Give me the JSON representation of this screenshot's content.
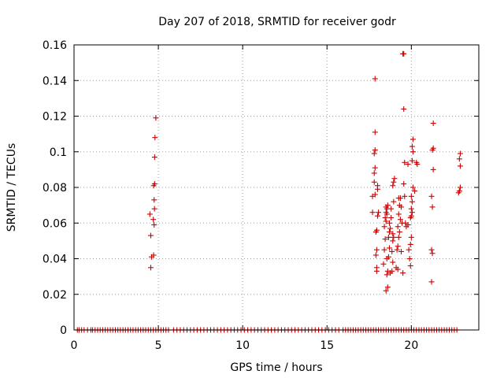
{
  "chart_data": {
    "type": "scatter",
    "title": "Day 207 of 2018, SRMTID for receiver godr",
    "xlabel": "GPS time / hours",
    "ylabel": "SRMTID / TECUs",
    "xlim": [
      0,
      24
    ],
    "ylim": [
      0,
      0.16
    ],
    "xticks": [
      0,
      5,
      10,
      15,
      20
    ],
    "xtick_labels": [
      "0",
      "5",
      "10",
      "15",
      "20"
    ],
    "yticks": [
      0,
      0.02,
      0.04,
      0.06,
      0.08,
      0.1,
      0.12,
      0.14,
      0.16
    ],
    "ytick_labels": [
      "0",
      "0.02",
      "0.04",
      "0.06",
      "0.08",
      "0.1",
      "0.12",
      "0.14",
      "0.16"
    ],
    "grid": true,
    "marker": "plus",
    "marker_color": "#cc0000",
    "series": [
      {
        "name": "SRMTID",
        "points": [
          [
            4.55,
            0.035
          ],
          [
            4.6,
            0.041
          ],
          [
            4.72,
            0.042
          ],
          [
            4.55,
            0.053
          ],
          [
            4.75,
            0.059
          ],
          [
            4.7,
            0.062
          ],
          [
            4.5,
            0.065
          ],
          [
            4.77,
            0.068
          ],
          [
            4.75,
            0.073
          ],
          [
            4.72,
            0.081
          ],
          [
            4.78,
            0.082
          ],
          [
            4.78,
            0.097
          ],
          [
            4.8,
            0.108
          ],
          [
            4.85,
            0.119
          ],
          [
            17.7,
            0.066
          ],
          [
            17.7,
            0.075
          ],
          [
            17.85,
            0.076
          ],
          [
            17.8,
            0.083
          ],
          [
            17.8,
            0.088
          ],
          [
            17.85,
            0.091
          ],
          [
            17.8,
            0.099
          ],
          [
            17.85,
            0.101
          ],
          [
            17.85,
            0.111
          ],
          [
            17.85,
            0.141
          ],
          [
            17.95,
            0.033
          ],
          [
            17.95,
            0.035
          ],
          [
            17.9,
            0.042
          ],
          [
            17.95,
            0.045
          ],
          [
            17.9,
            0.055
          ],
          [
            17.95,
            0.056
          ],
          [
            18.0,
            0.064
          ],
          [
            18.05,
            0.066
          ],
          [
            18.0,
            0.079
          ],
          [
            18.0,
            0.081
          ],
          [
            18.35,
            0.037
          ],
          [
            18.4,
            0.045
          ],
          [
            18.45,
            0.051
          ],
          [
            18.4,
            0.058
          ],
          [
            18.5,
            0.061
          ],
          [
            18.45,
            0.063
          ],
          [
            18.55,
            0.065
          ],
          [
            18.5,
            0.066
          ],
          [
            18.55,
            0.068
          ],
          [
            18.5,
            0.069
          ],
          [
            18.6,
            0.07
          ],
          [
            18.5,
            0.022
          ],
          [
            18.6,
            0.024
          ],
          [
            18.55,
            0.031
          ],
          [
            18.6,
            0.033
          ],
          [
            18.55,
            0.04
          ],
          [
            18.65,
            0.041
          ],
          [
            18.7,
            0.046
          ],
          [
            18.65,
            0.052
          ],
          [
            18.7,
            0.055
          ],
          [
            18.75,
            0.057
          ],
          [
            18.7,
            0.06
          ],
          [
            18.8,
            0.063
          ],
          [
            18.75,
            0.032
          ],
          [
            18.85,
            0.033
          ],
          [
            18.9,
            0.038
          ],
          [
            18.85,
            0.044
          ],
          [
            18.9,
            0.05
          ],
          [
            18.95,
            0.052
          ],
          [
            18.9,
            0.054
          ],
          [
            18.8,
            0.068
          ],
          [
            18.95,
            0.072
          ],
          [
            18.9,
            0.081
          ],
          [
            18.95,
            0.083
          ],
          [
            19.0,
            0.085
          ],
          [
            19.1,
            0.035
          ],
          [
            19.2,
            0.034
          ],
          [
            19.15,
            0.045
          ],
          [
            19.2,
            0.047
          ],
          [
            19.25,
            0.052
          ],
          [
            19.3,
            0.055
          ],
          [
            19.2,
            0.058
          ],
          [
            19.25,
            0.065
          ],
          [
            19.3,
            0.07
          ],
          [
            19.25,
            0.074
          ],
          [
            19.35,
            0.074
          ],
          [
            19.4,
            0.069
          ],
          [
            19.35,
            0.062
          ],
          [
            19.45,
            0.06
          ],
          [
            19.4,
            0.044
          ],
          [
            19.5,
            0.032
          ],
          [
            19.5,
            0.155
          ],
          [
            19.55,
            0.155
          ],
          [
            19.55,
            0.124
          ],
          [
            19.6,
            0.094
          ],
          [
            19.55,
            0.082
          ],
          [
            19.6,
            0.075
          ],
          [
            19.65,
            0.06
          ],
          [
            19.7,
            0.058
          ],
          [
            19.8,
            0.059
          ],
          [
            19.8,
            0.093
          ],
          [
            19.85,
            0.045
          ],
          [
            19.9,
            0.04
          ],
          [
            19.95,
            0.036
          ],
          [
            19.95,
            0.048
          ],
          [
            20.0,
            0.052
          ],
          [
            19.95,
            0.063
          ],
          [
            20.0,
            0.064
          ],
          [
            20.05,
            0.066
          ],
          [
            20.0,
            0.068
          ],
          [
            20.05,
            0.072
          ],
          [
            20.0,
            0.075
          ],
          [
            20.1,
            0.08
          ],
          [
            20.05,
            0.095
          ],
          [
            20.1,
            0.1
          ],
          [
            20.05,
            0.103
          ],
          [
            20.1,
            0.107
          ],
          [
            20.2,
            0.078
          ],
          [
            20.3,
            0.094
          ],
          [
            20.35,
            0.093
          ],
          [
            21.2,
            0.027
          ],
          [
            21.25,
            0.043
          ],
          [
            21.2,
            0.045
          ],
          [
            21.25,
            0.069
          ],
          [
            21.2,
            0.075
          ],
          [
            21.3,
            0.09
          ],
          [
            21.25,
            0.101
          ],
          [
            21.3,
            0.102
          ],
          [
            21.3,
            0.116
          ],
          [
            22.8,
            0.077
          ],
          [
            22.85,
            0.078
          ],
          [
            22.9,
            0.08
          ],
          [
            22.9,
            0.092
          ],
          [
            22.85,
            0.096
          ],
          [
            22.9,
            0.099
          ]
        ],
        "zero_x": [
          0.2,
          0.3,
          0.45,
          0.6,
          0.8,
          1.0,
          1.1,
          1.25,
          1.4,
          1.55,
          1.7,
          1.85,
          2.0,
          2.15,
          2.3,
          2.45,
          2.6,
          2.75,
          2.9,
          3.05,
          3.2,
          3.35,
          3.5,
          3.65,
          3.8,
          3.95,
          4.1,
          4.25,
          4.4,
          4.55,
          4.7,
          4.85,
          5.0,
          5.15,
          5.3,
          5.45,
          5.6,
          5.9,
          6.1,
          6.3,
          6.5,
          6.7,
          6.9,
          7.1,
          7.3,
          7.5,
          7.7,
          7.9,
          8.1,
          8.3,
          8.5,
          8.7,
          8.9,
          9.1,
          9.3,
          9.5,
          9.7,
          9.9,
          10.1,
          10.3,
          10.5,
          10.7,
          10.9,
          11.1,
          11.3,
          11.5,
          11.7,
          11.9,
          12.1,
          12.3,
          12.5,
          12.7,
          12.9,
          13.1,
          13.3,
          13.5,
          13.7,
          13.9,
          14.1,
          14.3,
          14.5,
          14.7,
          14.9,
          15.1,
          15.3,
          15.5,
          15.7,
          15.95,
          16.1,
          16.25,
          16.4,
          16.55,
          16.7,
          16.85,
          17.0,
          17.15,
          17.3,
          17.45,
          17.6,
          17.75,
          17.9,
          18.05,
          18.2,
          18.35,
          18.5,
          18.65,
          18.8,
          18.95,
          19.1,
          19.25,
          19.4,
          19.55,
          19.7,
          19.85,
          20.0,
          20.15,
          20.3,
          20.45,
          20.6,
          20.75,
          20.9,
          21.05,
          21.2,
          21.35,
          21.5,
          21.65,
          21.8,
          21.95,
          22.1,
          22.25,
          22.4,
          22.55,
          22.7
        ]
      }
    ]
  }
}
